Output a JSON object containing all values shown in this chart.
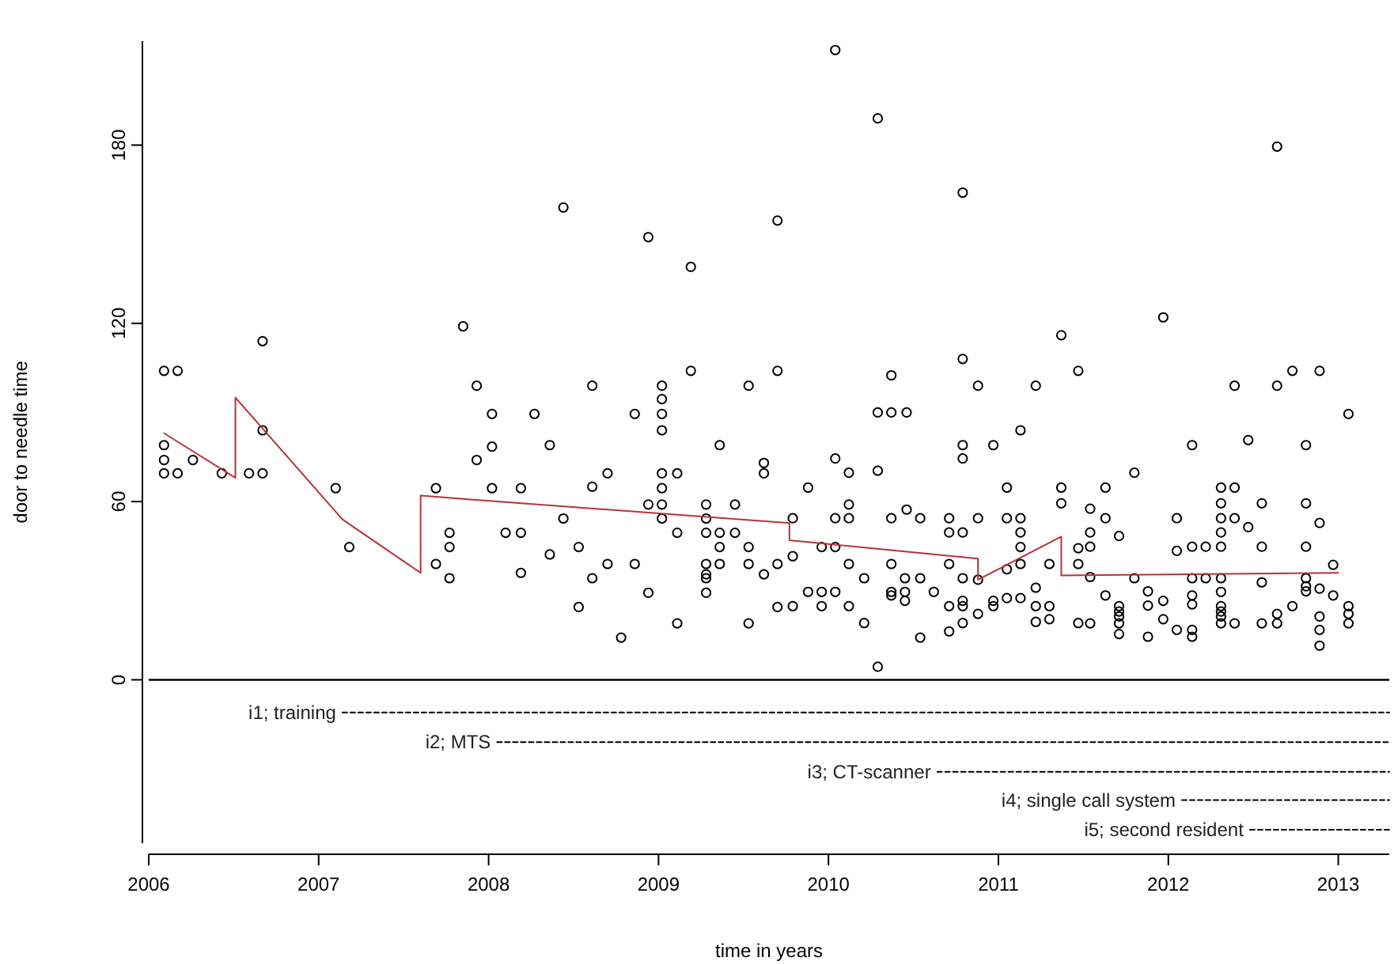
{
  "chart_data": {
    "type": "scatter",
    "xlabel": "time in years",
    "ylabel": "door to needle time",
    "xlim": [
      2006,
      2013.3
    ],
    "xticks": [
      2006,
      2007,
      2008,
      2009,
      2010,
      2011,
      2012,
      2013
    ],
    "ylim": [
      -55,
      215
    ],
    "yticks": [
      0,
      60,
      120,
      180
    ],
    "ref_lines": [
      {
        "axis": "y",
        "value": 0,
        "color": "#000000"
      }
    ],
    "series": [
      {
        "marker": "circle",
        "color": "#000000",
        "x": [
          2006.09,
          2006.17,
          2006.67,
          2006.09,
          2006.09,
          2006.26,
          2006.09,
          2006.17,
          2006.43,
          2006.59,
          2006.67,
          2006.67,
          2007.1,
          2007.18,
          2007.85,
          2007.93,
          2007.93,
          2007.69,
          2007.77,
          2007.77,
          2007.69,
          2007.77,
          2008.44,
          2008.94,
          2009.19,
          2009.7,
          2008.61,
          2009.02,
          2009.02,
          2009.02,
          2009.02,
          2009.19,
          2009.53,
          2009.7,
          2008.02,
          2008.27,
          2008.86,
          2008.02,
          2008.36,
          2009.36,
          2009.62,
          2009.62,
          2008.02,
          2008.19,
          2008.61,
          2008.7,
          2009.02,
          2009.11,
          2009.02,
          2008.94,
          2009.02,
          2009.28,
          2009.45,
          2008.44,
          2009.02,
          2009.28,
          2008.1,
          2008.19,
          2009.11,
          2009.28,
          2009.36,
          2009.45,
          2008.36,
          2008.53,
          2009.36,
          2009.53,
          2008.19,
          2008.61,
          2008.7,
          2008.86,
          2009.28,
          2009.36,
          2009.53,
          2009.7,
          2009.28,
          2009.28,
          2009.62,
          2008.94,
          2009.28,
          2009.7,
          2008.53,
          2009.11,
          2009.53,
          2008.78,
          2010.04,
          2010.29,
          2010.79,
          2011.37,
          2010.79,
          2010.37,
          2011.47,
          2010.88,
          2011.22,
          2010.29,
          2010.37,
          2010.46,
          2011.13,
          2010.79,
          2010.97,
          2010.79,
          2010.04,
          2010.12,
          2010.29,
          2009.88,
          2011.05,
          2011.37,
          2011.37,
          2010.12,
          2009.79,
          2010.04,
          2010.12,
          2010.37,
          2010.46,
          2010.54,
          2010.71,
          2010.88,
          2011.05,
          2011.13,
          2010.71,
          2010.79,
          2011.13,
          2011.13,
          2009.96,
          2010.04,
          2009.79,
          2010.12,
          2010.37,
          2010.71,
          2011.05,
          2011.13,
          2011.3,
          2011.47,
          2011.47,
          2010.21,
          2010.45,
          2010.54,
          2010.79,
          2010.88,
          2009.88,
          2009.96,
          2010.04,
          2010.37,
          2010.37,
          2010.45,
          2010.62,
          2010.45,
          2011.05,
          2011.13,
          2011.22,
          2010.71,
          2010.79,
          2010.79,
          2010.97,
          2010.97,
          2009.79,
          2009.96,
          2010.12,
          2010.88,
          2011.22,
          2011.3,
          2011.22,
          2011.3,
          2010.21,
          2010.79,
          2010.71,
          2010.54,
          2010.29,
          2011.47,
          2012.64,
          2011.97,
          2012.39,
          2012.64,
          2012.73,
          2012.89,
          2013.06,
          2012.14,
          2012.47,
          2012.81,
          2011.8,
          2011.63,
          2012.31,
          2012.39,
          2011.54,
          2011.63,
          2012.05,
          2012.31,
          2012.31,
          2012.31,
          2012.39,
          2012.47,
          2012.55,
          2012.81,
          2012.89,
          2011.54,
          2011.71,
          2011.54,
          2012.05,
          2012.14,
          2012.22,
          2012.31,
          2012.55,
          2012.81,
          2012.97,
          2011.54,
          2011.8,
          2012.14,
          2012.22,
          2012.31,
          2012.81,
          2012.55,
          2012.81,
          2012.81,
          2011.63,
          2011.88,
          2012.14,
          2012.14,
          2012.31,
          2012.89,
          2012.97,
          2011.88,
          2011.97,
          2011.71,
          2011.71,
          2011.71,
          2011.71,
          2011.71,
          2012.31,
          2012.31,
          2012.31,
          2012.31,
          2012.39,
          2011.97,
          2011.54,
          2011.88,
          2012.05,
          2012.14,
          2012.14,
          2012.55,
          2012.64,
          2012.64,
          2012.73,
          2012.89,
          2012.89,
          2012.89,
          2013.06,
          2013.06,
          2013.06
        ],
        "values": [
          104,
          104,
          114,
          79,
          74,
          74,
          69.5,
          69.5,
          69.5,
          69.5,
          69.5,
          84,
          64.5,
          44.7,
          119,
          99,
          74,
          64.5,
          49.5,
          44.7,
          39,
          34.2,
          159,
          149,
          139,
          154.6,
          99,
          99,
          94.5,
          89.5,
          84,
          104,
          99,
          104,
          89.5,
          89.5,
          89.5,
          78.5,
          79,
          79,
          73,
          69.5,
          64.5,
          64.5,
          65,
          69.5,
          69.5,
          69.5,
          64.5,
          59,
          59,
          59,
          59,
          54.3,
          54.3,
          54.3,
          49.5,
          49.5,
          49.5,
          49.5,
          49.5,
          49.5,
          42.2,
          44.7,
          44.7,
          44.7,
          36,
          34.2,
          39,
          39,
          39,
          39,
          39,
          39,
          35.5,
          34.2,
          35.5,
          29.3,
          29.3,
          24.5,
          24.5,
          19,
          19,
          14.2,
          212,
          189,
          164,
          116,
          108,
          102.5,
          104,
          99,
          99,
          90,
          90,
          90,
          84,
          79,
          79,
          74.5,
          74.5,
          69.7,
          70.4,
          64.7,
          64.7,
          64.7,
          59.4,
          59,
          54.4,
          54.4,
          54.4,
          54.4,
          57.3,
          54.4,
          54.4,
          54.4,
          54.4,
          54.4,
          49.6,
          49.6,
          49.6,
          44.7,
          44.7,
          44.7,
          41.6,
          39,
          39,
          39,
          37.2,
          39,
          39,
          44.3,
          39,
          34.2,
          34.2,
          34.2,
          34.2,
          33.7,
          29.6,
          29.6,
          29.6,
          29.6,
          28.4,
          29.6,
          29.6,
          26.6,
          27.5,
          27.5,
          31,
          24.8,
          26.6,
          24.8,
          26.6,
          24.8,
          24.8,
          24.8,
          24.8,
          22.2,
          24.8,
          24.8,
          19.5,
          20.4,
          19.1,
          19.1,
          16.3,
          14.2,
          4.4,
          19.1,
          179.5,
          122,
          99,
          99,
          104,
          104,
          89.5,
          79,
          80.7,
          79,
          69.7,
          64.7,
          64.7,
          64.7,
          57.6,
          54.4,
          54.4,
          59.4,
          54.4,
          49.6,
          54.4,
          51.4,
          59.4,
          59.4,
          52.8,
          49.6,
          48.4,
          44.8,
          43.4,
          44.8,
          44.8,
          44.8,
          44.8,
          44.8,
          38.7,
          34.6,
          34.2,
          34.2,
          34.2,
          34.2,
          34.2,
          32.8,
          31.5,
          29.8,
          28.4,
          29.8,
          28.4,
          25.4,
          29.6,
          30.7,
          28.4,
          25,
          26.6,
          24.8,
          23,
          21.3,
          19,
          15.4,
          24.8,
          23,
          21.3,
          19,
          19,
          20.4,
          19,
          14.5,
          16.8,
          16.8,
          14.5,
          19,
          22.2,
          19,
          24.8,
          21.3,
          16.8,
          11.5,
          24.8,
          22.2,
          19
        ]
      },
      {
        "type": "line",
        "marker": "none",
        "color": "#b5343a",
        "x": [
          2006.09,
          2006.51,
          2006.51,
          2007.14,
          2007.6,
          2007.6,
          2007.91,
          2009.77,
          2009.77,
          2010.88,
          2010.88,
          2011.37,
          2011.37,
          2013.0
        ],
        "values": [
          83,
          68,
          95,
          54,
          36,
          62,
          60.6,
          52.8,
          47,
          40.8,
          33.7,
          48.2,
          35.1,
          36
        ]
      },
      {
        "type": "line",
        "marker": "none",
        "line_style": "dashed",
        "name": "i1; training",
        "color": "#000000",
        "x": [
          2007.14,
          2013.3
        ],
        "values": [
          -11,
          -11
        ]
      },
      {
        "type": "line",
        "marker": "none",
        "line_style": "dashed",
        "name": "i2; MTS",
        "color": "#000000",
        "x": [
          2008.05,
          2013.3
        ],
        "values": [
          -21,
          -21
        ]
      },
      {
        "type": "line",
        "marker": "none",
        "line_style": "dashed",
        "name": "i3; CT-scanner",
        "color": "#000000",
        "x": [
          2010.64,
          2013.3
        ],
        "values": [
          -31,
          -31
        ]
      },
      {
        "type": "line",
        "marker": "none",
        "line_style": "dashed",
        "name": "i4; single call system",
        "color": "#000000",
        "x": [
          2012.08,
          2013.3
        ],
        "values": [
          -40.5,
          -40.5
        ]
      },
      {
        "type": "line",
        "marker": "none",
        "line_style": "dashed",
        "name": "i5; second resident",
        "color": "#000000",
        "x": [
          2012.48,
          2013.3
        ],
        "values": [
          -50.5,
          -50.5
        ]
      }
    ]
  }
}
